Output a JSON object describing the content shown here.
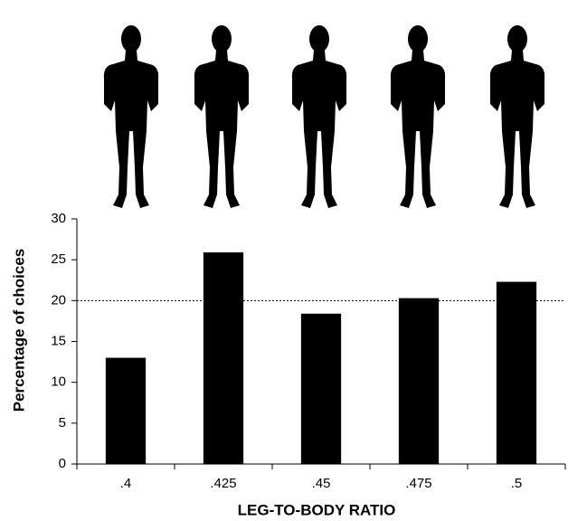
{
  "chart_data": {
    "type": "bar",
    "x_label": "LEG-TO-BODY RATIO",
    "y_label": "Percentage of choices",
    "categories": [
      ".4",
      ".425",
      ".45",
      ".475",
      ".5"
    ],
    "values": [
      13,
      25.9,
      18.4,
      20.3,
      22.3
    ],
    "color": "#000000",
    "ylim": [
      0,
      30
    ],
    "yticks": [
      0,
      5,
      10,
      15,
      20,
      25,
      30
    ],
    "reference_line": 20
  }
}
